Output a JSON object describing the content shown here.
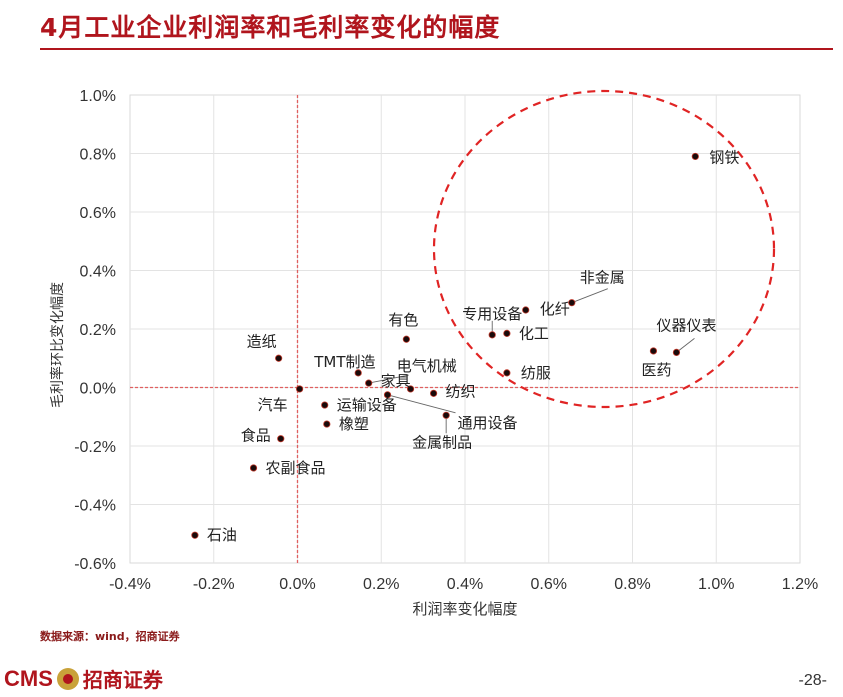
{
  "page": {
    "title": "4月工业企业利润率和毛利率变化的幅度",
    "source": "数据来源：wind，招商证券",
    "logo_text": "CMS",
    "logo_cn": "招商证券",
    "page_number": "-28-"
  },
  "chart_data": {
    "type": "scatter",
    "title": "",
    "xlabel": "利润率变化幅度",
    "ylabel": "毛利率环比变化幅度",
    "xlim": [
      -0.4,
      1.2
    ],
    "ylim": [
      -0.6,
      1.0
    ],
    "x_ticks": [
      "-0.4%",
      "-0.2%",
      "0.0%",
      "0.2%",
      "0.4%",
      "0.6%",
      "0.8%",
      "1.0%",
      "1.2%"
    ],
    "y_ticks": [
      "-0.6%",
      "-0.4%",
      "-0.2%",
      "0.0%",
      "0.2%",
      "0.4%",
      "0.6%",
      "0.8%",
      "1.0%"
    ],
    "grid": true,
    "points": [
      {
        "label": "钢铁",
        "x": 0.95,
        "y": 0.79
      },
      {
        "label": "非金属",
        "x": 0.655,
        "y": 0.29
      },
      {
        "label": "化纤",
        "x": 0.545,
        "y": 0.265
      },
      {
        "label": "专用设备",
        "x": 0.465,
        "y": 0.18
      },
      {
        "label": "化工",
        "x": 0.5,
        "y": 0.185
      },
      {
        "label": "仪器仪表",
        "x": 0.905,
        "y": 0.12
      },
      {
        "label": "医药",
        "x": 0.85,
        "y": 0.125
      },
      {
        "label": "有色",
        "x": 0.26,
        "y": 0.165
      },
      {
        "label": "造纸",
        "x": -0.045,
        "y": 0.1
      },
      {
        "label": "TMT制造",
        "x": 0.145,
        "y": 0.05
      },
      {
        "label": "纺服",
        "x": 0.5,
        "y": 0.05
      },
      {
        "label": "电气机械",
        "x": 0.17,
        "y": 0.015
      },
      {
        "label": "家具",
        "x": 0.27,
        "y": -0.005
      },
      {
        "label": "汽车",
        "x": 0.005,
        "y": -0.005
      },
      {
        "label": "纺织",
        "x": 0.325,
        "y": -0.02
      },
      {
        "label": "通用设备",
        "x": 0.215,
        "y": -0.025
      },
      {
        "label": "运输设备",
        "x": 0.065,
        "y": -0.06
      },
      {
        "label": "金属制品",
        "x": 0.355,
        "y": -0.095
      },
      {
        "label": "橡塑",
        "x": 0.07,
        "y": -0.125
      },
      {
        "label": "食品",
        "x": -0.04,
        "y": -0.175
      },
      {
        "label": "农副食品",
        "x": -0.105,
        "y": -0.275
      },
      {
        "label": "石油",
        "x": -0.245,
        "y": -0.505
      }
    ],
    "colors": {
      "point": "#1a0a0a",
      "point_stroke": "#c0392b",
      "axis_ref": "#e06060",
      "circle": "#e02424",
      "title": "#b0151d"
    }
  }
}
